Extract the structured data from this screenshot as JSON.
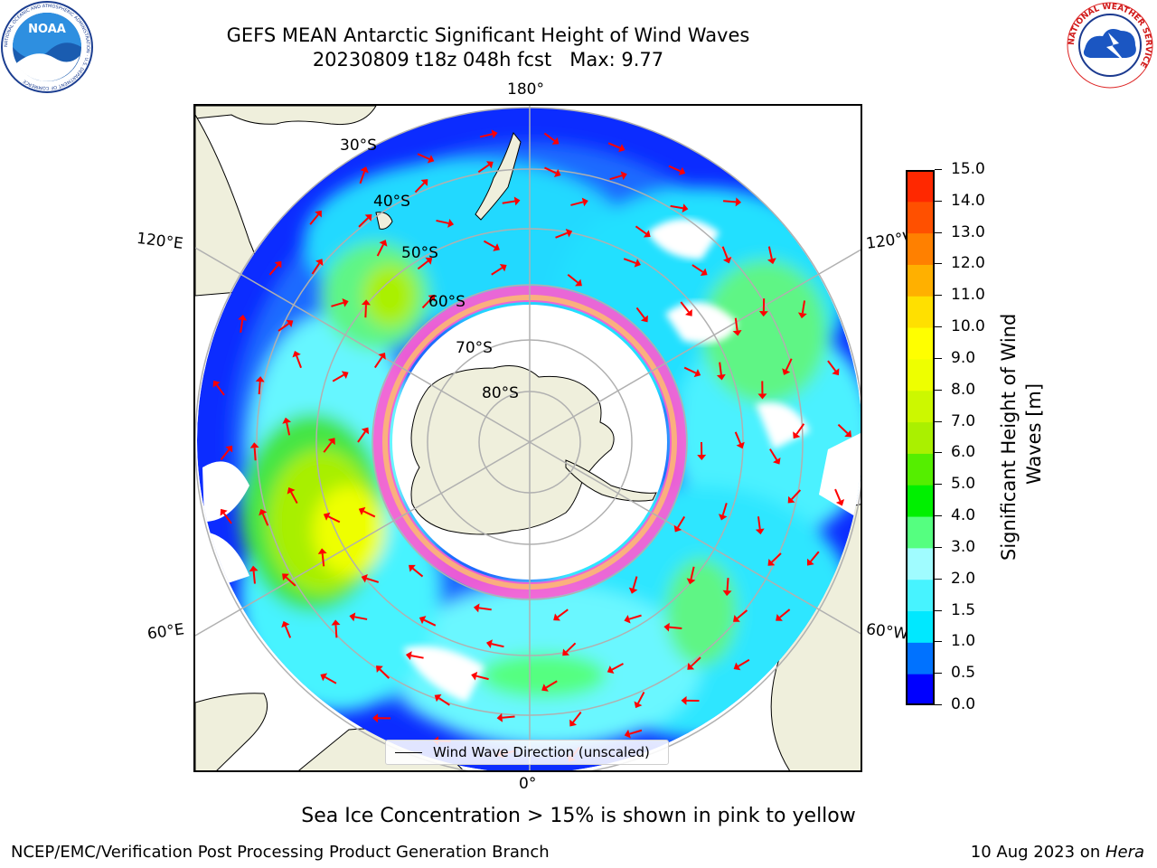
{
  "title": {
    "line1": "GEFS MEAN Antarctic Significant Height of Wind Waves",
    "line2": "20230809 t18z 048h fcst   Max: 9.77"
  },
  "map": {
    "projection": "south-polar-stereographic",
    "longitude_labels": {
      "top": "180°",
      "bottom": "0°",
      "left_upper": "120°E",
      "left_lower": "60°E",
      "right_upper": "120°W",
      "right_lower": "60°W"
    },
    "latitude_labels": [
      "30°S",
      "40°S",
      "50°S",
      "60°S",
      "70°S",
      "80°S"
    ],
    "land_color": "#efefdc",
    "grid_color": "#b0b0b0",
    "arrow_color": "#ff0000"
  },
  "legend": {
    "label": "Wind Wave Direction (unscaled)"
  },
  "colorbar": {
    "label": "Significant Height of Wind Waves [m]",
    "ticks": [
      "0.0",
      "0.5",
      "1.0",
      "1.5",
      "2.0",
      "3.0",
      "4.0",
      "5.0",
      "6.0",
      "7.0",
      "8.0",
      "9.0",
      "10.0",
      "11.0",
      "12.0",
      "13.0",
      "14.0",
      "15.0"
    ],
    "colors": [
      "#0000ff",
      "#0072ff",
      "#00e8ff",
      "#47f3ff",
      "#a0fcff",
      "#55ff80",
      "#00f000",
      "#55ee00",
      "#aaf000",
      "#ccf800",
      "#eeff00",
      "#ffff00",
      "#ffe000",
      "#ffb000",
      "#ff8000",
      "#ff5000",
      "#ff2800",
      "#ff0000"
    ]
  },
  "footer": {
    "caption": "Sea Ice Concentration > 15% is shown in pink to yellow",
    "left": "NCEP/EMC/Verification Post Processing Product Generation Branch",
    "right_date": "10 Aug 2023 on ",
    "right_host": "Hera"
  },
  "logos": {
    "noaa": {
      "text": "NOAA",
      "ring_text": "NATIONAL OCEANIC AND ATMOSPHERIC ADMINISTRATION · U.S. DEPARTMENT OF COMMERCE"
    },
    "nws": {
      "ring_text": "NATIONAL WEATHER SERVICE"
    }
  }
}
